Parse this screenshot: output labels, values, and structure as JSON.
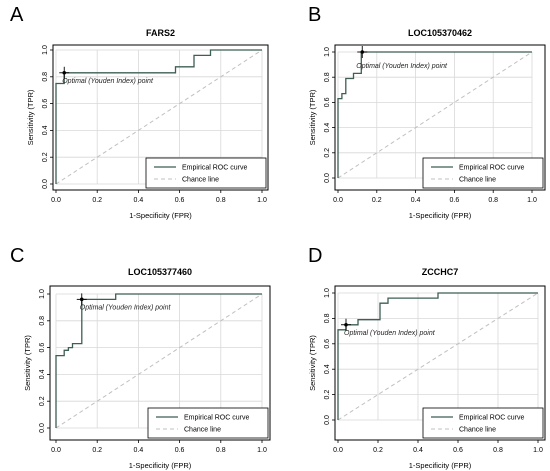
{
  "axis": {
    "xlabel": "1-Specificity (FPR)",
    "ylabel": "Sensitivity (TPR)",
    "xlim": [
      0,
      1
    ],
    "ylim": [
      0,
      1
    ],
    "ticks": [
      "0.0",
      "0.2",
      "0.4",
      "0.6",
      "0.8",
      "1.0"
    ]
  },
  "legend": {
    "empirical": "Empirical ROC curve",
    "chance": "Chance line",
    "placement": "bottom-right"
  },
  "optimal_label": "Optimal (Youden Index) point",
  "colors": {
    "roc": "#3e5e56",
    "chance": "#c0c0c0",
    "grid": "#d8d8d8",
    "frame": "#000000"
  },
  "chart_data": [
    {
      "type": "line",
      "panel": "A",
      "title": "FARS2",
      "grid": true,
      "x": [
        0,
        0,
        0.04,
        0.04,
        0.58,
        0.58,
        0.67,
        0.67,
        0.75,
        0.75,
        1.0
      ],
      "y": [
        0,
        0.75,
        0.75,
        0.83,
        0.83,
        0.875,
        0.875,
        0.96,
        0.96,
        1.0,
        1.0
      ],
      "optimal_point": [
        0.04,
        0.83
      ]
    },
    {
      "type": "line",
      "panel": "B",
      "title": "LOC105370462",
      "grid": true,
      "x": [
        0,
        0,
        0.02,
        0.02,
        0.04,
        0.04,
        0.08,
        0.08,
        0.12,
        0.12,
        1.0
      ],
      "y": [
        0,
        0.63,
        0.63,
        0.67,
        0.67,
        0.79,
        0.79,
        0.83,
        0.83,
        1.0,
        1.0
      ],
      "optimal_point": [
        0.125,
        1.0
      ]
    },
    {
      "type": "line",
      "panel": "C",
      "title": "LOC105377460",
      "grid": true,
      "x": [
        0,
        0,
        0.04,
        0.04,
        0.06,
        0.06,
        0.08,
        0.08,
        0.125,
        0.125,
        0.29,
        0.29,
        1.0
      ],
      "y": [
        0,
        0.54,
        0.54,
        0.58,
        0.58,
        0.6,
        0.6,
        0.63,
        0.63,
        0.96,
        0.96,
        1.0,
        1.0
      ],
      "optimal_point": [
        0.125,
        0.96
      ]
    },
    {
      "type": "line",
      "panel": "D",
      "title": "ZCCHC7",
      "grid": true,
      "x": [
        0,
        0,
        0.04,
        0.04,
        0.1,
        0.1,
        0.21,
        0.21,
        0.25,
        0.25,
        0.5,
        0.5,
        1.0
      ],
      "y": [
        0,
        0.71,
        0.71,
        0.75,
        0.75,
        0.79,
        0.79,
        0.92,
        0.92,
        0.96,
        0.96,
        1.0,
        1.0
      ],
      "optimal_point": [
        0.04,
        0.75
      ]
    }
  ]
}
